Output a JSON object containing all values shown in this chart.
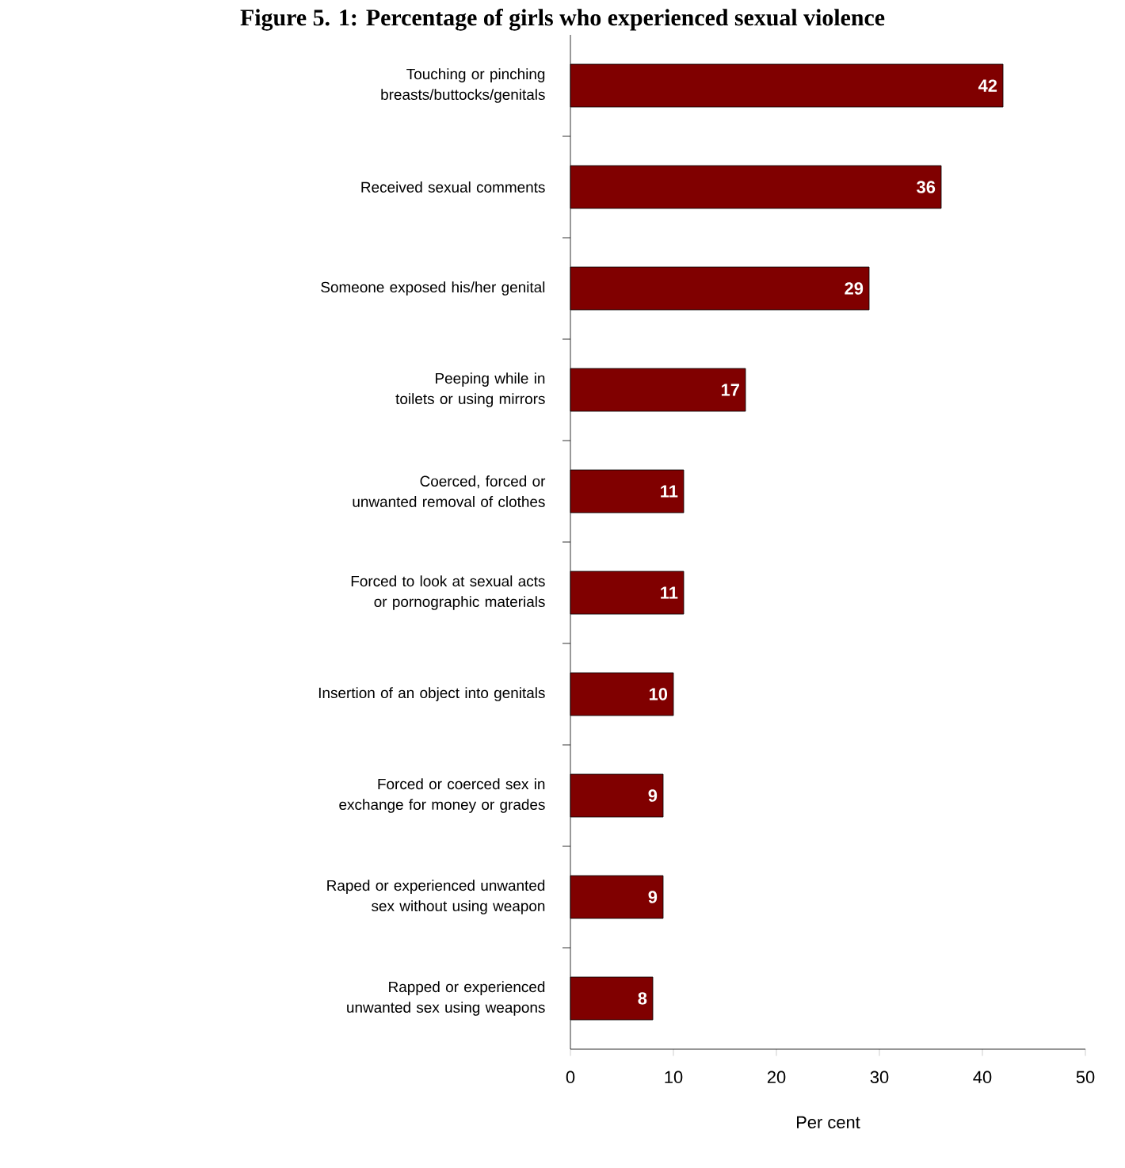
{
  "chart_data": {
    "type": "bar",
    "orientation": "horizontal",
    "title": "Figure 5. 1: Percentage of girls who experienced sexual violence",
    "categories": [
      "Touching or pinching breasts/buttocks/genitals",
      "Received sexual comments",
      "Someone exposed his/her genital",
      "Peeping while in toilets or using mirrors",
      "Coerced, forced or unwanted removal of clothes",
      "Forced to look at sexual acts or pornographic materials",
      "Insertion of an object into genitals",
      "Forced or coerced sex in exchange for money or grades",
      "Raped or experienced unwanted sex without using weapon",
      "Rapped or experienced unwanted sex using weapons"
    ],
    "values": [
      42,
      36,
      29,
      17,
      11,
      11,
      10,
      9,
      9,
      8
    ],
    "color": "#800000",
    "data_labels": true,
    "xlabel": "Per cent",
    "xlim": [
      0,
      50
    ],
    "xticks": [
      0,
      10,
      20,
      30,
      40,
      50
    ]
  }
}
